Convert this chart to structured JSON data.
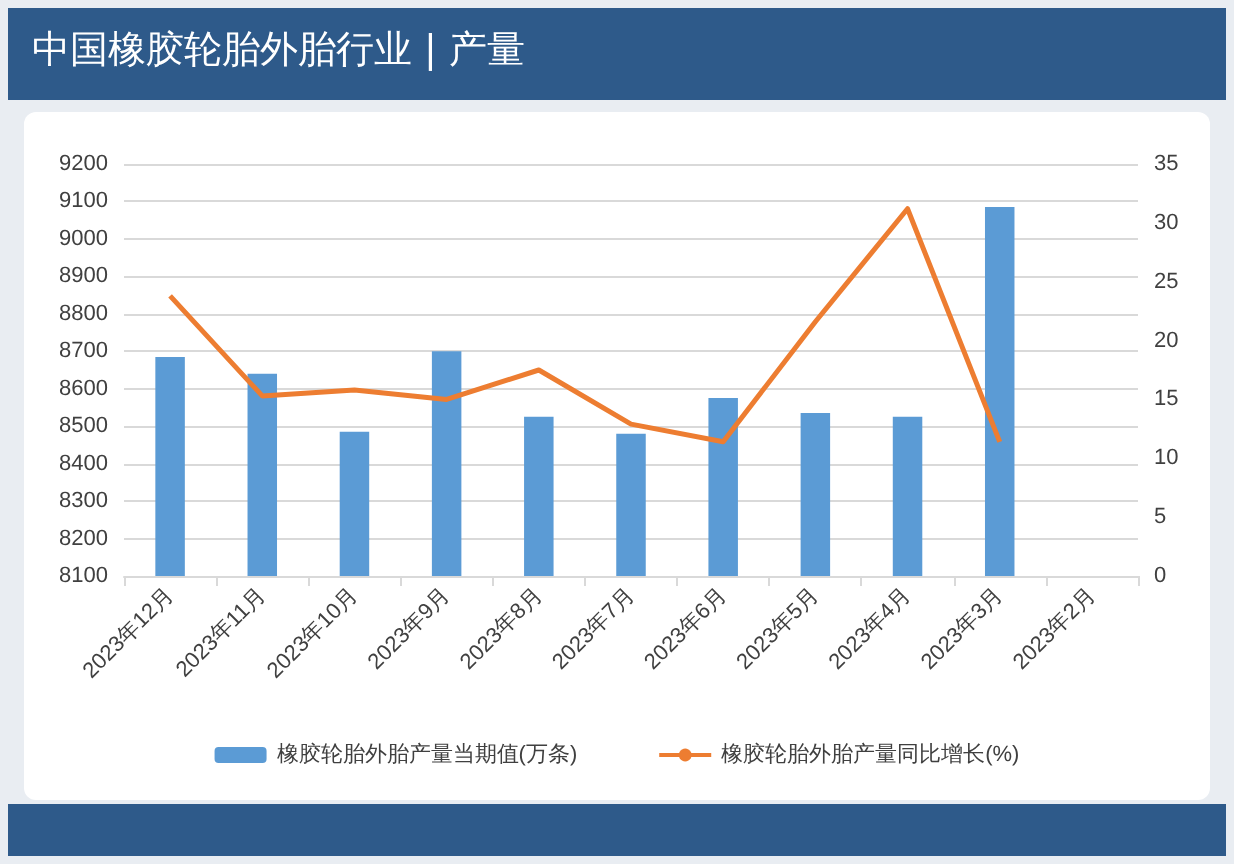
{
  "chart_data": {
    "type": "bar",
    "title": "中国橡胶轮胎外胎行业 | 产量",
    "categories": [
      "2023年12月",
      "2023年11月",
      "2023年10月",
      "2023年9月",
      "2023年8月",
      "2023年7月",
      "2023年6月",
      "2023年5月",
      "2023年4月",
      "2023年3月",
      "2023年2月"
    ],
    "series": [
      {
        "name": "橡胶轮胎外胎产量当期值(万条)",
        "color": "#5b9bd5",
        "values": [
          8685,
          8640,
          8485,
          8700,
          8525,
          8480,
          8575,
          8535,
          8525,
          9085,
          null
        ]
      },
      {
        "name": "橡胶轮胎外胎产量同比增长(%)",
        "type": "line",
        "axis": "y2",
        "color": "#ed7d31",
        "values": [
          23.8,
          15.3,
          15.8,
          15.0,
          17.5,
          12.9,
          11.4,
          21.6,
          31.2,
          11.4,
          null
        ]
      }
    ],
    "ylim": [
      8100,
      9200
    ],
    "yticks": [
      8100,
      8200,
      8300,
      8400,
      8500,
      8600,
      8700,
      8800,
      8900,
      9000,
      9100,
      9200
    ],
    "y2lim": [
      0,
      35
    ],
    "y2ticks": [
      0,
      5,
      10,
      15,
      20,
      25,
      30,
      35
    ],
    "grid": "y",
    "legend": "bottom",
    "marker": "none",
    "line_style": "solid"
  }
}
